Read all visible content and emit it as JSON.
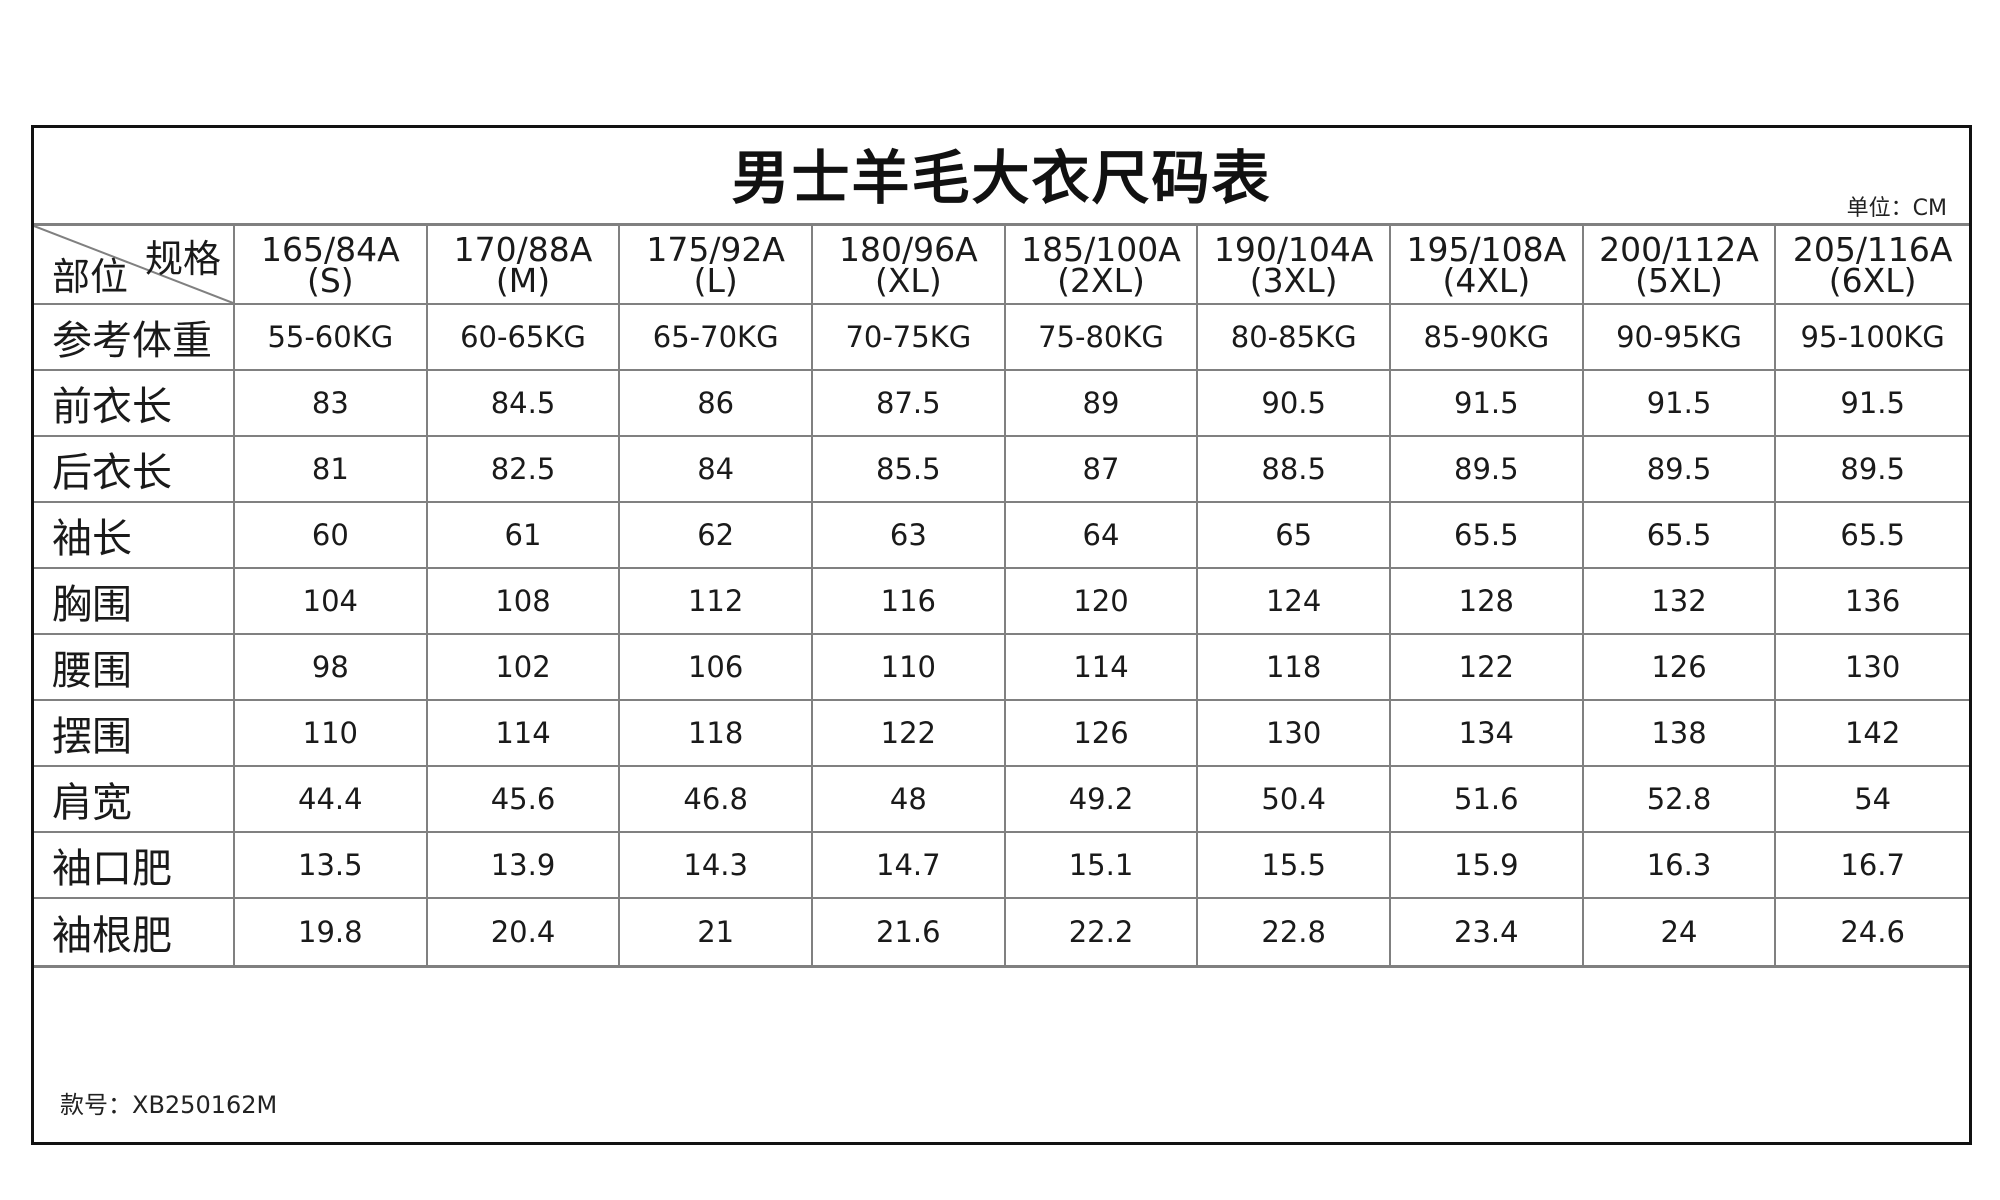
{
  "title": "男士羊毛大衣尺码表",
  "unit": "单位：CM",
  "corner": {
    "top_right": "规格",
    "bottom_left": "部位"
  },
  "sizes": [
    {
      "spec": "165/84A",
      "label": "(S)"
    },
    {
      "spec": "170/88A",
      "label": "(M)"
    },
    {
      "spec": "175/92A",
      "label": "(L)"
    },
    {
      "spec": "180/96A",
      "label": "(XL)"
    },
    {
      "spec": "185/100A",
      "label": "(2XL)"
    },
    {
      "spec": "190/104A",
      "label": "(3XL)"
    },
    {
      "spec": "195/108A",
      "label": "(4XL)"
    },
    {
      "spec": "200/112A",
      "label": "(5XL)"
    },
    {
      "spec": "205/116A",
      "label": "(6XL)"
    }
  ],
  "rows": [
    {
      "label": "参考体重",
      "values": [
        "55-60KG",
        "60-65KG",
        "65-70KG",
        "70-75KG",
        "75-80KG",
        "80-85KG",
        "85-90KG",
        "90-95KG",
        "95-100KG"
      ]
    },
    {
      "label": "前衣长",
      "values": [
        "83",
        "84.5",
        "86",
        "87.5",
        "89",
        "90.5",
        "91.5",
        "91.5",
        "91.5"
      ]
    },
    {
      "label": "后衣长",
      "values": [
        "81",
        "82.5",
        "84",
        "85.5",
        "87",
        "88.5",
        "89.5",
        "89.5",
        "89.5"
      ]
    },
    {
      "label": "袖长",
      "values": [
        "60",
        "61",
        "62",
        "63",
        "64",
        "65",
        "65.5",
        "65.5",
        "65.5"
      ]
    },
    {
      "label": "胸围",
      "values": [
        "104",
        "108",
        "112",
        "116",
        "120",
        "124",
        "128",
        "132",
        "136"
      ]
    },
    {
      "label": "腰围",
      "values": [
        "98",
        "102",
        "106",
        "110",
        "114",
        "118",
        "122",
        "126",
        "130"
      ]
    },
    {
      "label": "摆围",
      "values": [
        "110",
        "114",
        "118",
        "122",
        "126",
        "130",
        "134",
        "138",
        "142"
      ]
    },
    {
      "label": "肩宽",
      "values": [
        "44.4",
        "45.6",
        "46.8",
        "48",
        "49.2",
        "50.4",
        "51.6",
        "52.8",
        "54"
      ]
    },
    {
      "label": "袖口肥",
      "values": [
        "13.5",
        "13.9",
        "14.3",
        "14.7",
        "15.1",
        "15.5",
        "15.9",
        "16.3",
        "16.7"
      ]
    },
    {
      "label": "袖根肥",
      "values": [
        "19.8",
        "20.4",
        "21",
        "21.6",
        "22.2",
        "22.8",
        "23.4",
        "24",
        "24.6"
      ]
    }
  ],
  "footer": "款号：XB250162M"
}
